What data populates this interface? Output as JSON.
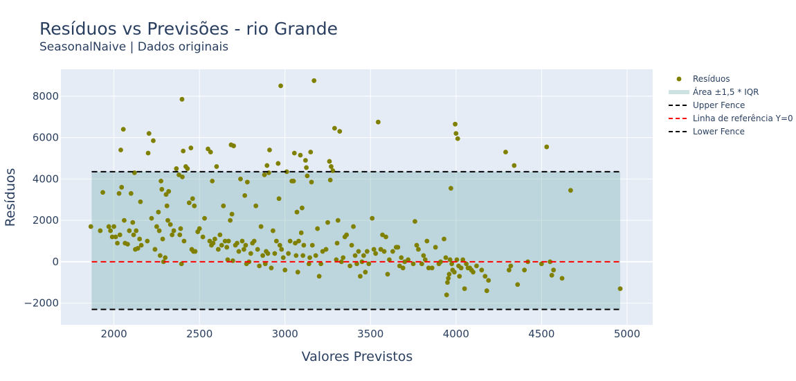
{
  "chart_data": {
    "type": "scatter",
    "title": "Resíduos vs Previsões - rio Grande",
    "subtitle": "SeasonalNaive | Dados originais",
    "xlabel": "Valores Previstos",
    "ylabel": "Resíduos",
    "xlim": [
      1690,
      5150
    ],
    "ylim": [
      -3050,
      9300
    ],
    "x_ticks": [
      2000,
      2500,
      3000,
      3500,
      4000,
      4500,
      5000
    ],
    "y_ticks": [
      -2000,
      0,
      2000,
      4000,
      6000,
      8000
    ],
    "grid": true,
    "legend_position": "top-right",
    "colors": {
      "points": "#808000",
      "iqr_area": "#5f9ea0",
      "fence": "#000000",
      "reference": "#ff0000",
      "plot_bg": "#e5ecf6"
    },
    "iqr_area": {
      "x_range": [
        1870,
        4960
      ],
      "y_range": [
        -2300,
        4350
      ]
    },
    "upper_fence": 4350,
    "lower_fence": -2300,
    "reference_y": 0,
    "legend": [
      {
        "key": "residuals",
        "label": "Resíduos"
      },
      {
        "key": "iqr",
        "label": "Área ±1,5 * IQR"
      },
      {
        "key": "upper",
        "label": "Upper Fence"
      },
      {
        "key": "reference",
        "label": "Linha de referência Y=0"
      },
      {
        "key": "lower",
        "label": "Lower Fence"
      }
    ],
    "series": [
      {
        "name": "Resíduos",
        "points": [
          [
            1865,
            1700
          ],
          [
            1920,
            1500
          ],
          [
            1935,
            3350
          ],
          [
            1970,
            1700
          ],
          [
            1980,
            1500
          ],
          [
            1990,
            1200
          ],
          [
            2000,
            1700
          ],
          [
            2010,
            1200
          ],
          [
            2020,
            900
          ],
          [
            2030,
            3300
          ],
          [
            2035,
            1300
          ],
          [
            2040,
            5400
          ],
          [
            2045,
            3600
          ],
          [
            2055,
            6400
          ],
          [
            2060,
            2000
          ],
          [
            2065,
            900
          ],
          [
            2080,
            850
          ],
          [
            2090,
            1500
          ],
          [
            2100,
            3300
          ],
          [
            2110,
            1900
          ],
          [
            2115,
            1300
          ],
          [
            2120,
            4300
          ],
          [
            2125,
            600
          ],
          [
            2130,
            1500
          ],
          [
            2140,
            650
          ],
          [
            2150,
            1100
          ],
          [
            2155,
            2900
          ],
          [
            2160,
            800
          ],
          [
            2195,
            1000
          ],
          [
            2200,
            5250
          ],
          [
            2205,
            6200
          ],
          [
            2220,
            2100
          ],
          [
            2230,
            5850
          ],
          [
            2240,
            600
          ],
          [
            2250,
            1700
          ],
          [
            2260,
            2400
          ],
          [
            2265,
            1500
          ],
          [
            2270,
            300
          ],
          [
            2275,
            3900
          ],
          [
            2280,
            3500
          ],
          [
            2285,
            1100
          ],
          [
            2290,
            0
          ],
          [
            2300,
            200
          ],
          [
            2305,
            3250
          ],
          [
            2310,
            2700
          ],
          [
            2315,
            2000
          ],
          [
            2320,
            3400
          ],
          [
            2330,
            1800
          ],
          [
            2340,
            1300
          ],
          [
            2350,
            1500
          ],
          [
            2365,
            4500
          ],
          [
            2380,
            4200
          ],
          [
            2385,
            1300
          ],
          [
            2390,
            1600
          ],
          [
            2395,
            -100
          ],
          [
            2398,
            7850
          ],
          [
            2400,
            4100
          ],
          [
            2405,
            5350
          ],
          [
            2410,
            1000
          ],
          [
            2420,
            4600
          ],
          [
            2430,
            4500
          ],
          [
            2440,
            2850
          ],
          [
            2450,
            5500
          ],
          [
            2455,
            600
          ],
          [
            2460,
            3050
          ],
          [
            2465,
            500
          ],
          [
            2470,
            2700
          ],
          [
            2475,
            500
          ],
          [
            2490,
            1450
          ],
          [
            2500,
            1600
          ],
          [
            2520,
            1200
          ],
          [
            2530,
            2100
          ],
          [
            2550,
            5450
          ],
          [
            2560,
            1000
          ],
          [
            2565,
            5300
          ],
          [
            2570,
            800
          ],
          [
            2575,
            3900
          ],
          [
            2580,
            900
          ],
          [
            2590,
            1100
          ],
          [
            2600,
            4600
          ],
          [
            2610,
            600
          ],
          [
            2620,
            1300
          ],
          [
            2630,
            800
          ],
          [
            2640,
            2700
          ],
          [
            2650,
            1000
          ],
          [
            2660,
            700
          ],
          [
            2665,
            100
          ],
          [
            2670,
            1000
          ],
          [
            2680,
            2000
          ],
          [
            2685,
            5650
          ],
          [
            2690,
            2300
          ],
          [
            2695,
            50
          ],
          [
            2700,
            5600
          ],
          [
            2710,
            800
          ],
          [
            2720,
            900
          ],
          [
            2730,
            500
          ],
          [
            2740,
            4000
          ],
          [
            2750,
            1000
          ],
          [
            2760,
            600
          ],
          [
            2765,
            3200
          ],
          [
            2770,
            800
          ],
          [
            2775,
            -100
          ],
          [
            2780,
            3850
          ],
          [
            2790,
            0
          ],
          [
            2800,
            400
          ],
          [
            2810,
            900
          ],
          [
            2820,
            1000
          ],
          [
            2830,
            2700
          ],
          [
            2840,
            600
          ],
          [
            2850,
            -200
          ],
          [
            2860,
            1700
          ],
          [
            2870,
            300
          ],
          [
            2880,
            4200
          ],
          [
            2885,
            -100
          ],
          [
            2890,
            500
          ],
          [
            2895,
            4650
          ],
          [
            2900,
            400
          ],
          [
            2905,
            4300
          ],
          [
            2910,
            5400
          ],
          [
            2920,
            -300
          ],
          [
            2930,
            1500
          ],
          [
            2940,
            400
          ],
          [
            2950,
            1000
          ],
          [
            2960,
            4750
          ],
          [
            2965,
            3050
          ],
          [
            2970,
            800
          ],
          [
            2975,
            8500
          ],
          [
            2980,
            600
          ],
          [
            2990,
            200
          ],
          [
            3000,
            -400
          ],
          [
            3010,
            4350
          ],
          [
            3020,
            400
          ],
          [
            3030,
            1000
          ],
          [
            3040,
            3900
          ],
          [
            3050,
            3900
          ],
          [
            3055,
            5250
          ],
          [
            3060,
            900
          ],
          [
            3065,
            300
          ],
          [
            3070,
            2400
          ],
          [
            3075,
            -500
          ],
          [
            3080,
            1000
          ],
          [
            3090,
            5150
          ],
          [
            3095,
            1400
          ],
          [
            3100,
            2600
          ],
          [
            3105,
            300
          ],
          [
            3110,
            800
          ],
          [
            3120,
            4900
          ],
          [
            3125,
            4550
          ],
          [
            3130,
            4150
          ],
          [
            3140,
            -100
          ],
          [
            3145,
            200
          ],
          [
            3150,
            5300
          ],
          [
            3155,
            3850
          ],
          [
            3160,
            800
          ],
          [
            3170,
            8750
          ],
          [
            3180,
            300
          ],
          [
            3190,
            1600
          ],
          [
            3200,
            -700
          ],
          [
            3210,
            -100
          ],
          [
            3220,
            500
          ],
          [
            3240,
            600
          ],
          [
            3250,
            1900
          ],
          [
            3260,
            4850
          ],
          [
            3265,
            3950
          ],
          [
            3270,
            4600
          ],
          [
            3280,
            4400
          ],
          [
            3290,
            6450
          ],
          [
            3300,
            100
          ],
          [
            3305,
            900
          ],
          [
            3310,
            2000
          ],
          [
            3320,
            6300
          ],
          [
            3330,
            0
          ],
          [
            3340,
            200
          ],
          [
            3350,
            1200
          ],
          [
            3360,
            1300
          ],
          [
            3380,
            -200
          ],
          [
            3390,
            800
          ],
          [
            3400,
            1700
          ],
          [
            3410,
            300
          ],
          [
            3420,
            -100
          ],
          [
            3430,
            500
          ],
          [
            3440,
            -700
          ],
          [
            3450,
            0
          ],
          [
            3460,
            300
          ],
          [
            3470,
            -500
          ],
          [
            3480,
            500
          ],
          [
            3490,
            -100
          ],
          [
            3510,
            2100
          ],
          [
            3520,
            600
          ],
          [
            3530,
            400
          ],
          [
            3545,
            6750
          ],
          [
            3560,
            600
          ],
          [
            3570,
            1300
          ],
          [
            3580,
            500
          ],
          [
            3590,
            1200
          ],
          [
            3600,
            -600
          ],
          [
            3610,
            100
          ],
          [
            3630,
            500
          ],
          [
            3650,
            700
          ],
          [
            3660,
            700
          ],
          [
            3670,
            -200
          ],
          [
            3680,
            200
          ],
          [
            3690,
            -300
          ],
          [
            3700,
            0
          ],
          [
            3720,
            100
          ],
          [
            3750,
            -100
          ],
          [
            3760,
            1950
          ],
          [
            3770,
            800
          ],
          [
            3780,
            600
          ],
          [
            3800,
            -100
          ],
          [
            3810,
            300
          ],
          [
            3820,
            100
          ],
          [
            3830,
            1000
          ],
          [
            3840,
            -300
          ],
          [
            3860,
            -300
          ],
          [
            3880,
            700
          ],
          [
            3900,
            -100
          ],
          [
            3910,
            0
          ],
          [
            3930,
            1100
          ],
          [
            3940,
            200
          ],
          [
            3945,
            -1600
          ],
          [
            3950,
            -1000
          ],
          [
            3955,
            -800
          ],
          [
            3960,
            -600
          ],
          [
            3965,
            100
          ],
          [
            3970,
            3550
          ],
          [
            3975,
            -100
          ],
          [
            3980,
            -400
          ],
          [
            3990,
            -500
          ],
          [
            3995,
            6650
          ],
          [
            4000,
            6200
          ],
          [
            4005,
            100
          ],
          [
            4010,
            5950
          ],
          [
            4015,
            -200
          ],
          [
            4020,
            -700
          ],
          [
            4030,
            -300
          ],
          [
            4040,
            100
          ],
          [
            4050,
            -1300
          ],
          [
            4060,
            -100
          ],
          [
            4070,
            -300
          ],
          [
            4080,
            -300
          ],
          [
            4090,
            -400
          ],
          [
            4100,
            -500
          ],
          [
            4120,
            -200
          ],
          [
            4150,
            -400
          ],
          [
            4170,
            -700
          ],
          [
            4180,
            -1400
          ],
          [
            4190,
            -900
          ],
          [
            4290,
            5300
          ],
          [
            4310,
            -400
          ],
          [
            4320,
            -200
          ],
          [
            4340,
            4650
          ],
          [
            4360,
            -1100
          ],
          [
            4400,
            -400
          ],
          [
            4420,
            0
          ],
          [
            4500,
            -100
          ],
          [
            4530,
            5550
          ],
          [
            4550,
            0
          ],
          [
            4560,
            -650
          ],
          [
            4570,
            -400
          ],
          [
            4620,
            -800
          ],
          [
            4670,
            3450
          ],
          [
            4960,
            -1300
          ]
        ]
      }
    ]
  }
}
